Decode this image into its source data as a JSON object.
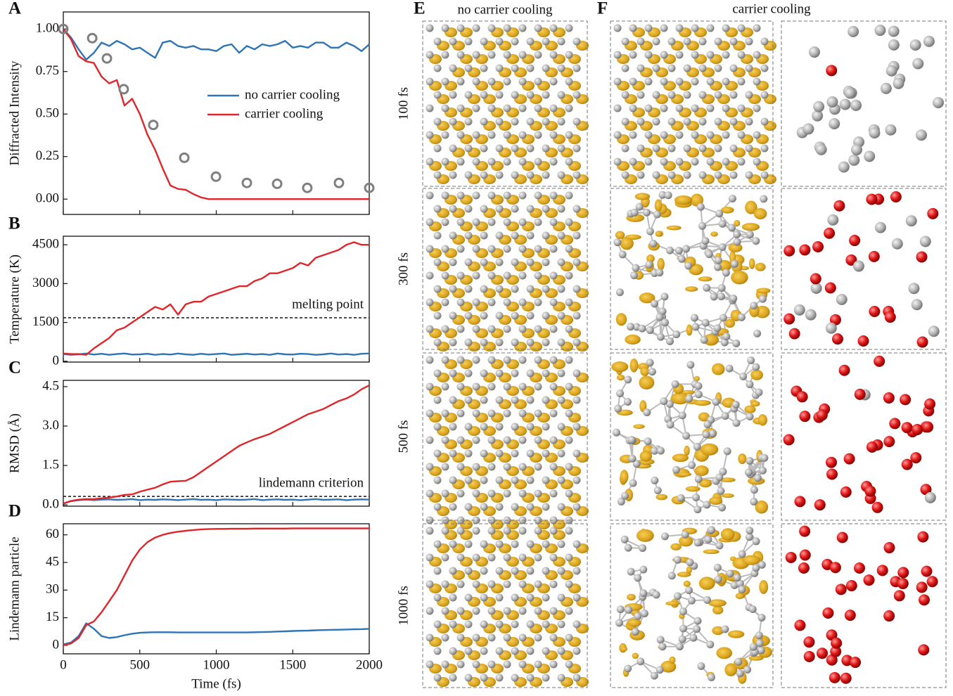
{
  "chart_data": [
    {
      "type": "line",
      "panel_label": "A",
      "ylabel": "Diffracted Intensity",
      "xlim": [
        0,
        2000
      ],
      "ylim": [
        -0.09,
        1.1
      ],
      "yticks": [
        {
          "value": 0,
          "label": "0.00"
        },
        {
          "value": 0.25,
          "label": "0.25"
        },
        {
          "value": 0.5,
          "label": "0.50"
        },
        {
          "value": 0.75,
          "label": "0.75"
        },
        {
          "value": 1,
          "label": "1.00"
        }
      ],
      "legend": "center-right",
      "x": [
        0,
        50,
        100,
        150,
        200,
        250,
        300,
        350,
        400,
        450,
        500,
        550,
        600,
        650,
        700,
        750,
        800,
        850,
        900,
        950,
        1000,
        1050,
        1100,
        1150,
        1200,
        1250,
        1300,
        1350,
        1400,
        1450,
        1500,
        1550,
        1600,
        1650,
        1700,
        1750,
        1800,
        1850,
        1900,
        1950,
        2000
      ],
      "series": [
        {
          "name": "no carrier cooling",
          "color": "#2f74b5",
          "values": [
            1.0,
            0.95,
            0.88,
            0.82,
            0.86,
            0.92,
            0.9,
            0.93,
            0.91,
            0.88,
            0.89,
            0.86,
            0.83,
            0.92,
            0.93,
            0.9,
            0.89,
            0.9,
            0.88,
            0.88,
            0.87,
            0.9,
            0.91,
            0.86,
            0.9,
            0.88,
            0.91,
            0.9,
            0.91,
            0.93,
            0.89,
            0.9,
            0.89,
            0.92,
            0.92,
            0.89,
            0.89,
            0.92,
            0.9,
            0.87,
            0.91
          ]
        },
        {
          "name": "carrier cooling",
          "color": "#e0262a",
          "values": [
            1.0,
            0.94,
            0.84,
            0.81,
            0.8,
            0.72,
            0.68,
            0.7,
            0.55,
            0.59,
            0.5,
            0.38,
            0.29,
            0.18,
            0.08,
            0.06,
            0.055,
            0.03,
            0.01,
            0,
            0,
            0,
            0,
            0,
            0,
            0,
            0,
            0,
            0,
            0,
            0,
            0,
            0,
            0,
            0,
            0,
            0,
            0,
            0,
            0,
            0
          ]
        },
        {
          "type": "scatter",
          "color": "#808080",
          "x": [
            0,
            189,
            285,
            395,
            588,
            791,
            998,
            1200,
            1398,
            1595,
            1802,
            2000
          ],
          "values": [
            1.0,
            0.946,
            0.827,
            0.646,
            0.436,
            0.243,
            0.132,
            0.095,
            0.09,
            0.066,
            0.095,
            0.066
          ]
        }
      ]
    },
    {
      "type": "line",
      "panel_label": "B",
      "ylabel": "Temperature (K)",
      "xlim": [
        0,
        2000
      ],
      "ylim": [
        -30,
        4830
      ],
      "yticks": [
        0,
        1500,
        3000,
        4500
      ],
      "reference_line": {
        "label": "melting point",
        "value": 1680
      },
      "x": [
        0,
        50,
        100,
        150,
        200,
        250,
        300,
        350,
        400,
        450,
        500,
        550,
        600,
        650,
        700,
        750,
        800,
        850,
        900,
        950,
        1000,
        1050,
        1100,
        1150,
        1200,
        1250,
        1300,
        1350,
        1400,
        1450,
        1500,
        1550,
        1600,
        1650,
        1700,
        1750,
        1800,
        1850,
        1900,
        1950,
        2000
      ],
      "series": [
        {
          "color": "#2f74b5",
          "values": [
            280,
            250,
            270,
            300,
            260,
            290,
            250,
            280,
            300,
            260,
            270,
            290,
            250,
            280,
            260,
            300,
            270,
            250,
            290,
            260,
            280,
            300,
            250,
            270,
            290,
            260,
            280,
            250,
            300,
            270,
            260,
            290,
            280,
            250,
            270,
            300,
            260,
            280,
            250,
            290,
            300
          ]
        },
        {
          "color": "#e0262a",
          "values": [
            300,
            280,
            280,
            250,
            500,
            700,
            900,
            1200,
            1300,
            1500,
            1700,
            1900,
            2100,
            2000,
            2200,
            1800,
            2200,
            2300,
            2300,
            2500,
            2600,
            2700,
            2800,
            2900,
            2900,
            3100,
            3200,
            3400,
            3400,
            3500,
            3600,
            3800,
            3700,
            4000,
            4100,
            4200,
            4300,
            4500,
            4600,
            4500,
            4500
          ]
        }
      ]
    },
    {
      "type": "line",
      "panel_label": "C",
      "ylabel": "RMSD (Å)",
      "xlim": [
        0,
        2000
      ],
      "ylim": [
        -0.05,
        4.74
      ],
      "yticks": [
        {
          "value": 0,
          "label": "0.0"
        },
        1.5,
        {
          "value": 3,
          "label": "3.0"
        },
        4.5
      ],
      "reference_line": {
        "label": "lindemann criterion",
        "value": 0.32
      },
      "x": [
        0,
        50,
        100,
        150,
        200,
        250,
        300,
        350,
        400,
        450,
        500,
        550,
        600,
        650,
        700,
        750,
        800,
        850,
        900,
        950,
        1000,
        1050,
        1100,
        1150,
        1200,
        1250,
        1300,
        1350,
        1400,
        1450,
        1500,
        1550,
        1600,
        1650,
        1700,
        1750,
        1800,
        1850,
        1900,
        1950,
        2000
      ],
      "series": [
        {
          "color": "#2f74b5",
          "values": [
            0.05,
            0.14,
            0.18,
            0.2,
            0.18,
            0.2,
            0.21,
            0.19,
            0.2,
            0.22,
            0.18,
            0.2,
            0.19,
            0.21,
            0.2,
            0.18,
            0.2,
            0.22,
            0.19,
            0.2,
            0.18,
            0.21,
            0.2,
            0.19,
            0.2,
            0.22,
            0.18,
            0.2,
            0.21,
            0.19,
            0.2,
            0.18,
            0.2,
            0.22,
            0.19,
            0.2,
            0.21,
            0.18,
            0.2,
            0.21,
            0.2
          ]
        },
        {
          "color": "#e0262a",
          "values": [
            0.05,
            0.15,
            0.2,
            0.22,
            0.22,
            0.25,
            0.28,
            0.32,
            0.38,
            0.4,
            0.5,
            0.58,
            0.65,
            0.78,
            0.88,
            0.9,
            0.92,
            1.05,
            1.25,
            1.45,
            1.65,
            1.85,
            2.05,
            2.25,
            2.38,
            2.5,
            2.6,
            2.7,
            2.85,
            3.0,
            3.15,
            3.3,
            3.45,
            3.55,
            3.65,
            3.8,
            3.95,
            4.05,
            4.2,
            4.4,
            4.55
          ]
        }
      ]
    },
    {
      "type": "line",
      "panel_label": "D",
      "ylabel": "Lindemann particle",
      "xlabel": "Time (fs)",
      "xlim": [
        0,
        2000
      ],
      "ylim": [
        -4.6,
        66
      ],
      "xticks": [
        0,
        500,
        1000,
        1500,
        2000
      ],
      "yticks": [
        0,
        15,
        30,
        45,
        60
      ],
      "x": [
        0,
        50,
        100,
        150,
        200,
        250,
        300,
        350,
        400,
        450,
        500,
        550,
        600,
        650,
        700,
        750,
        800,
        850,
        900,
        950,
        1000,
        1050,
        1100,
        1150,
        1200,
        1250,
        1300,
        1350,
        1400,
        1450,
        1500,
        1550,
        1600,
        1650,
        1700,
        1750,
        1800,
        1850,
        1900,
        1950,
        2000
      ],
      "series": [
        {
          "color": "#2f74b5",
          "values": [
            0.5,
            1.5,
            5,
            12,
            9,
            5,
            4,
            4.5,
            5.5,
            6.3,
            6.8,
            7,
            7.1,
            7.1,
            7.1,
            7.0,
            7.0,
            7.0,
            7.0,
            7.0,
            7.0,
            7.0,
            7.0,
            7.0,
            7.0,
            7.1,
            7.2,
            7.3,
            7.5,
            7.6,
            7.8,
            7.9,
            8.0,
            8.2,
            8.3,
            8.4,
            8.5,
            8.6,
            8.7,
            8.8,
            9.0
          ]
        },
        {
          "color": "#e0262a",
          "values": [
            0,
            1,
            4,
            11,
            13,
            18,
            24,
            30,
            38,
            46,
            52,
            56,
            58.5,
            60,
            61,
            61.7,
            62.2,
            62.6,
            62.9,
            63.1,
            63.2,
            63.2,
            63.3,
            63.3,
            63.3,
            63.4,
            63.4,
            63.4,
            63.4,
            63.4,
            63.5,
            63.5,
            63.5,
            63.5,
            63.5,
            63.5,
            63.5,
            63.5,
            63.5,
            63.5,
            63.5
          ]
        }
      ]
    }
  ],
  "snapshots": {
    "panel_e": {
      "label": "E",
      "title": "no carrier cooling"
    },
    "panel_f": {
      "label": "F",
      "title": "carrier cooling"
    },
    "rows": [
      "100 fs",
      "300 fs",
      "500 fs",
      "1000 fs"
    ]
  }
}
